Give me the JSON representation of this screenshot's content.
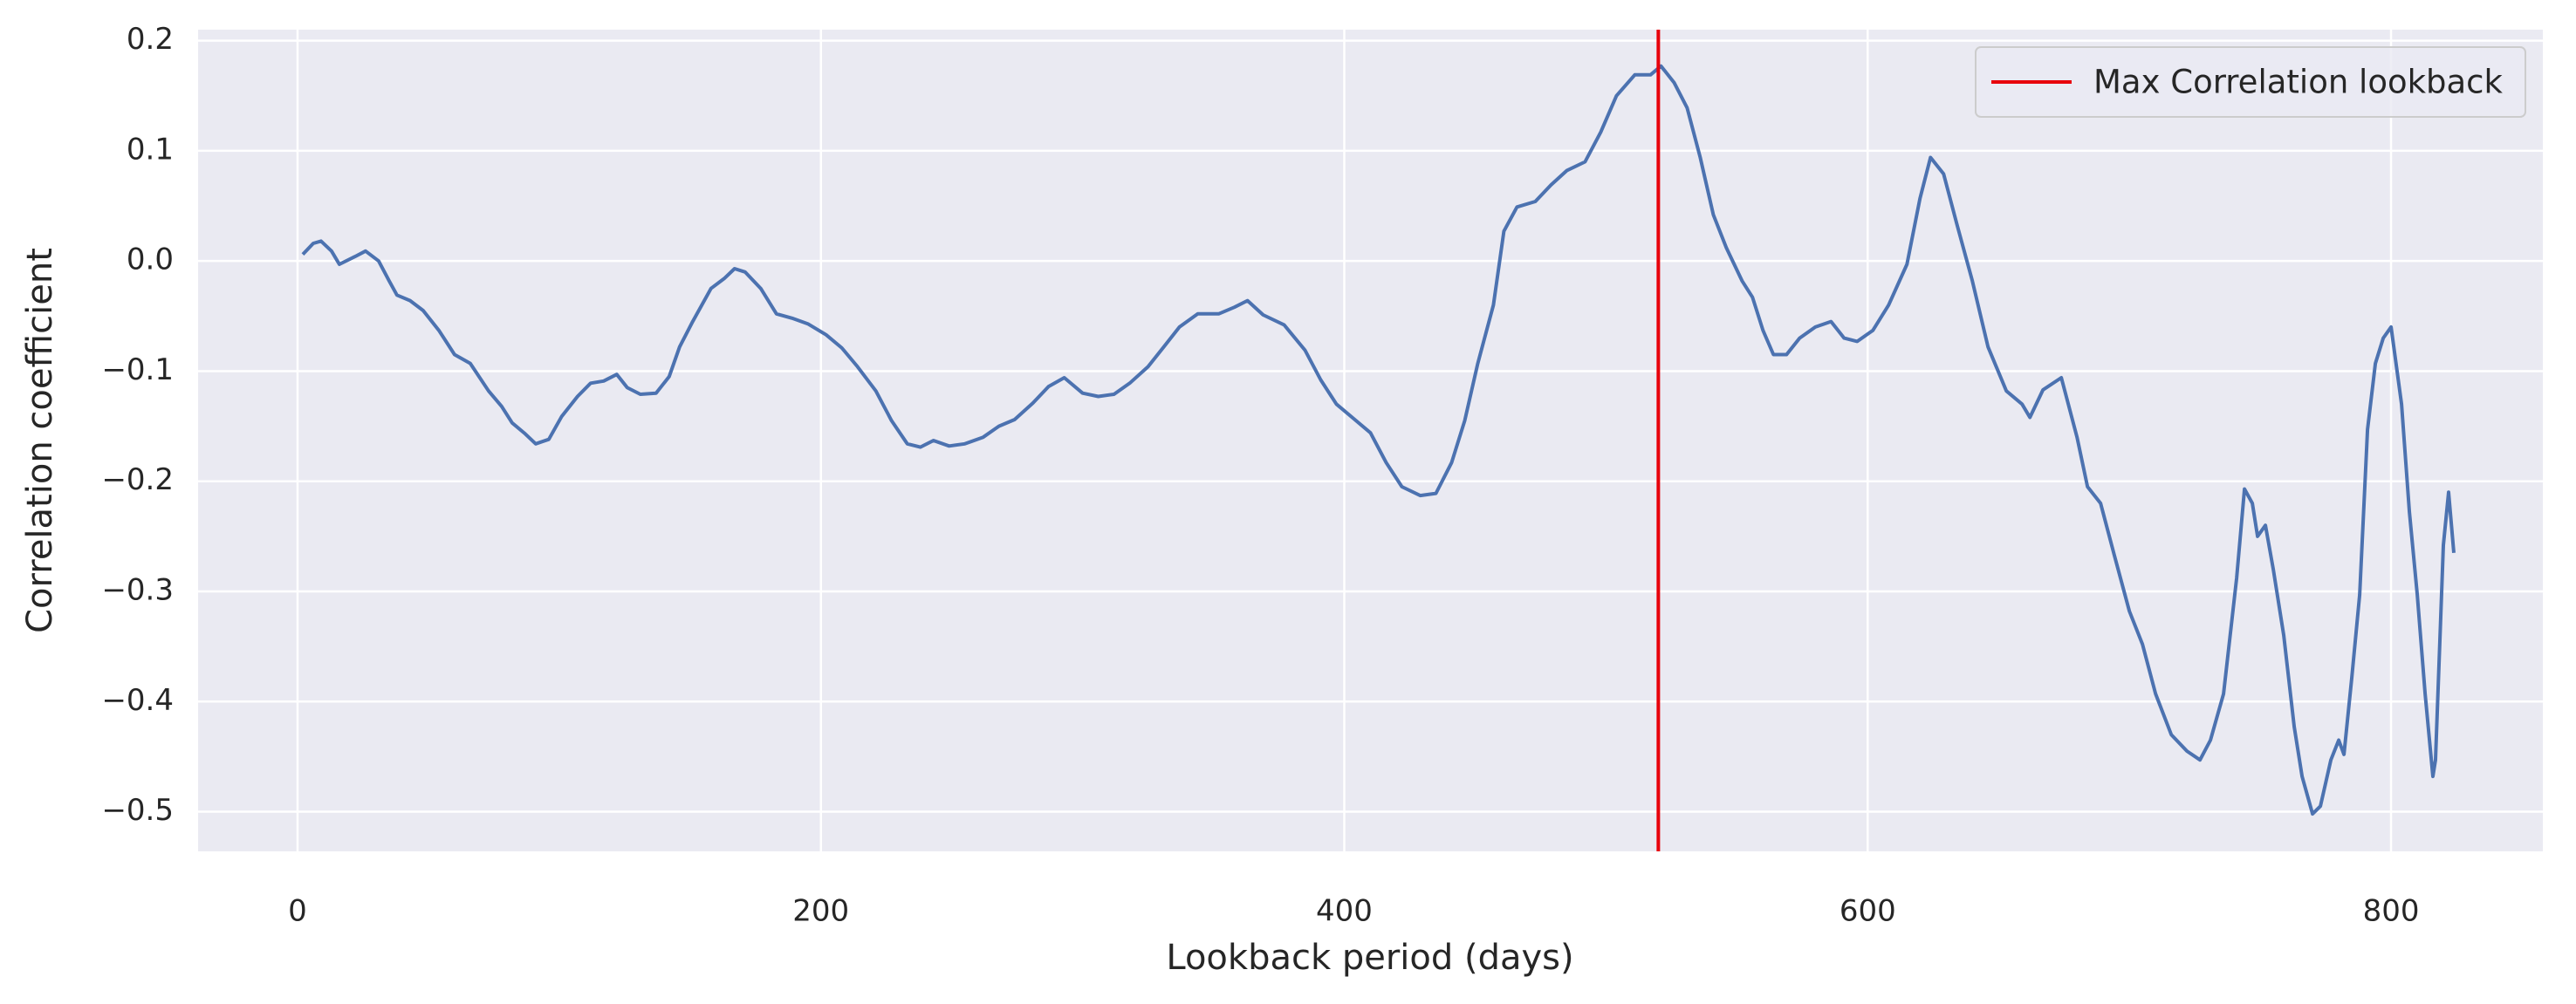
{
  "chart_data": {
    "type": "line",
    "xlabel": "Lookback period (days)",
    "ylabel": "Correlation coefficient",
    "xlim": [
      -38,
      858
    ],
    "ylim": [
      -0.536,
      0.21
    ],
    "xticks": [
      0,
      200,
      400,
      600,
      800
    ],
    "yticks": [
      {
        "value": -0.5,
        "label": "−0.5"
      },
      {
        "value": -0.4,
        "label": "−0.4"
      },
      {
        "value": -0.3,
        "label": "−0.3"
      },
      {
        "value": -0.2,
        "label": "−0.2"
      },
      {
        "value": -0.1,
        "label": "−0.1"
      },
      {
        "value": 0,
        "label": "0.0"
      },
      0.1,
      0.2
    ],
    "grid": true,
    "legend_position": "upper right",
    "vline": {
      "x": 520,
      "color": "#e8000b",
      "label": "Max Correlation lookback"
    },
    "series": [
      {
        "color": "#4c72b0",
        "x": [
          2,
          6,
          9,
          13,
          16,
          22,
          26,
          31,
          35,
          38,
          43,
          48,
          54,
          60,
          66,
          73,
          78,
          82,
          87,
          91,
          96,
          101,
          107,
          112,
          117,
          122,
          126,
          131,
          137,
          142,
          146,
          151,
          158,
          163,
          167,
          171,
          177,
          183,
          189,
          195,
          202,
          208,
          214,
          221,
          227,
          233,
          238,
          243,
          249,
          255,
          262,
          268,
          274,
          281,
          287,
          293,
          300,
          306,
          312,
          318,
          325,
          331,
          337,
          344,
          352,
          358,
          363,
          369,
          377,
          385,
          391,
          397,
          404,
          410,
          416,
          422,
          429,
          435,
          441,
          446,
          451,
          457,
          461,
          466,
          473,
          479,
          485,
          492,
          498,
          504,
          511,
          517,
          521,
          526,
          531,
          536,
          541,
          546,
          552,
          556,
          560,
          564,
          569,
          574,
          580,
          586,
          591,
          596,
          602,
          608,
          615,
          620,
          624,
          629,
          634,
          640,
          646,
          653,
          659,
          662,
          667,
          674,
          680,
          684,
          689,
          694,
          700,
          705,
          710,
          716,
          722,
          727,
          731,
          736,
          741,
          744,
          747,
          749,
          752,
          755,
          759,
          763,
          766,
          770,
          773,
          777,
          780,
          782,
          785,
          788,
          791,
          794,
          797,
          800,
          804,
          807,
          810,
          813,
          816,
          817,
          820,
          822,
          824
        ],
        "values": [
          0.006,
          0.016,
          0.018,
          0.009,
          -0.003,
          0.004,
          0.009,
          0.0,
          -0.018,
          -0.031,
          -0.036,
          -0.045,
          -0.063,
          -0.085,
          -0.093,
          -0.118,
          -0.132,
          -0.147,
          -0.157,
          -0.166,
          -0.162,
          -0.141,
          -0.123,
          -0.111,
          -0.109,
          -0.103,
          -0.115,
          -0.121,
          -0.12,
          -0.105,
          -0.078,
          -0.055,
          -0.025,
          -0.016,
          -0.007,
          -0.01,
          -0.025,
          -0.048,
          -0.052,
          -0.057,
          -0.067,
          -0.079,
          -0.096,
          -0.118,
          -0.145,
          -0.166,
          -0.169,
          -0.163,
          -0.168,
          -0.166,
          -0.16,
          -0.15,
          -0.144,
          -0.129,
          -0.114,
          -0.106,
          -0.12,
          -0.123,
          -0.121,
          -0.111,
          -0.096,
          -0.078,
          -0.06,
          -0.048,
          -0.048,
          -0.042,
          -0.036,
          -0.049,
          -0.058,
          -0.081,
          -0.108,
          -0.13,
          -0.144,
          -0.156,
          -0.183,
          -0.205,
          -0.213,
          -0.211,
          -0.183,
          -0.145,
          -0.093,
          -0.04,
          0.027,
          0.049,
          0.054,
          0.069,
          0.082,
          0.09,
          0.117,
          0.15,
          0.169,
          0.169,
          0.177,
          0.162,
          0.139,
          0.094,
          0.042,
          0.012,
          -0.018,
          -0.033,
          -0.063,
          -0.085,
          -0.085,
          -0.07,
          -0.06,
          -0.055,
          -0.07,
          -0.073,
          -0.063,
          -0.04,
          -0.003,
          0.057,
          0.094,
          0.079,
          0.034,
          -0.018,
          -0.078,
          -0.118,
          -0.13,
          -0.142,
          -0.117,
          -0.106,
          -0.16,
          -0.205,
          -0.22,
          -0.265,
          -0.318,
          -0.348,
          -0.393,
          -0.43,
          -0.445,
          -0.453,
          -0.435,
          -0.393,
          -0.288,
          -0.207,
          -0.22,
          -0.25,
          -0.24,
          -0.28,
          -0.34,
          -0.423,
          -0.468,
          -0.502,
          -0.495,
          -0.453,
          -0.435,
          -0.448,
          -0.378,
          -0.303,
          -0.153,
          -0.093,
          -0.07,
          -0.06,
          -0.13,
          -0.228,
          -0.303,
          -0.393,
          -0.468,
          -0.453,
          -0.258,
          -0.21,
          -0.265
        ]
      }
    ]
  }
}
